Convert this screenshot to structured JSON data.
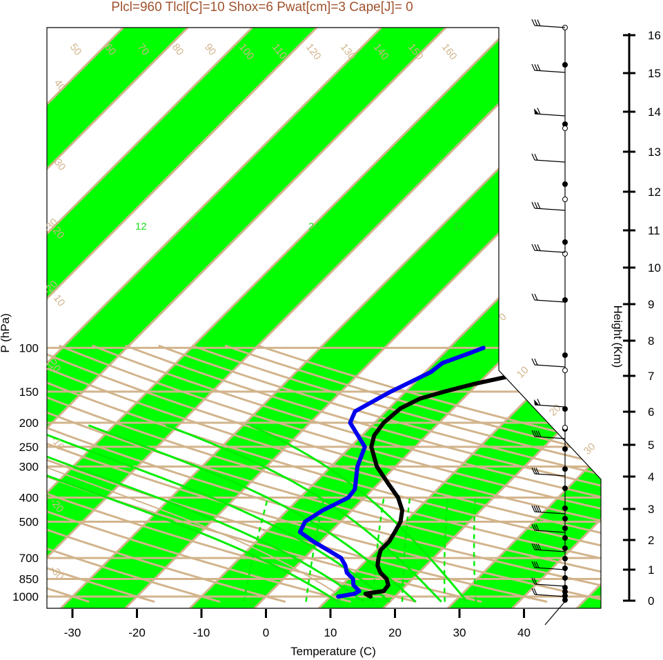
{
  "chart_data": {
    "type": "skew-t",
    "title": "Plcl=960 Tlcl[C]=10 Shox=6 Pwat[cm]=3 Cape[J]= 0",
    "xlabel": "Temperature (C)",
    "ylabel": "P (hPa)",
    "ylabel_right": "Height (Km)",
    "xlim": [
      -33,
      53
    ],
    "pressure_range_hPa": [
      1050,
      100
    ],
    "x_ticks": [
      "-30",
      "-20",
      "-10",
      "0",
      "10",
      "20",
      "30",
      "40"
    ],
    "p_ticks": [
      "100",
      "150",
      "200",
      "250",
      "300",
      "400",
      "500",
      "700",
      "850",
      "1000"
    ],
    "height_ticks": [
      "0",
      "1",
      "2",
      "3",
      "4",
      "5",
      "6",
      "7",
      "8",
      "9",
      "10",
      "11",
      "12",
      "13",
      "14",
      "15",
      "16"
    ],
    "isotherm_labels": [
      "-30",
      "-20",
      "-10",
      "0",
      "10",
      "20",
      "30"
    ],
    "dry_adiabat_labels": [
      "-30",
      "-20",
      "-10",
      "0",
      "10",
      "20",
      "30",
      "40",
      "50",
      "60",
      "70",
      "80",
      "90",
      "100",
      "110",
      "120",
      "130",
      "140",
      "150",
      "160"
    ],
    "mixing_ratio_labels": [
      "3",
      "6",
      "12",
      "16",
      "24",
      "32"
    ],
    "temperature_profile": [
      {
        "p": 1000,
        "t": 16.2
      },
      {
        "p": 975,
        "t": 15.0
      },
      {
        "p": 950,
        "t": 17.4
      },
      {
        "p": 900,
        "t": 17.2
      },
      {
        "p": 850,
        "t": 16.0
      },
      {
        "p": 800,
        "t": 14.0
      },
      {
        "p": 750,
        "t": 12.5
      },
      {
        "p": 700,
        "t": 11.5
      },
      {
        "p": 650,
        "t": 10.6
      },
      {
        "p": 600,
        "t": 10.6
      },
      {
        "p": 550,
        "t": 10.0
      },
      {
        "p": 500,
        "t": 9.3
      },
      {
        "p": 450,
        "t": 7.8
      },
      {
        "p": 400,
        "t": 5.2
      },
      {
        "p": 350,
        "t": 1.4
      },
      {
        "p": 300,
        "t": -2.9
      },
      {
        "p": 250,
        "t": -6.8
      },
      {
        "p": 225,
        "t": -8.1
      },
      {
        "p": 200,
        "t": -8.6
      },
      {
        "p": 175,
        "t": -8.2
      },
      {
        "p": 160,
        "t": -6.7
      },
      {
        "p": 150,
        "t": -4.0
      },
      {
        "p": 140,
        "t": -0.7
      },
      {
        "p": 125,
        "t": 6.1
      },
      {
        "p": 110,
        "t": 15.5
      },
      {
        "p": 100,
        "t": 20.6
      }
    ],
    "dewpoint_profile": [
      {
        "p": 1000,
        "t": 11.2
      },
      {
        "p": 975,
        "t": 13.3
      },
      {
        "p": 950,
        "t": 13.6
      },
      {
        "p": 900,
        "t": 11.8
      },
      {
        "p": 850,
        "t": 10.8
      },
      {
        "p": 800,
        "t": 8.8
      },
      {
        "p": 750,
        "t": 7.5
      },
      {
        "p": 700,
        "t": 5.7
      },
      {
        "p": 600,
        "t": -1.2
      },
      {
        "p": 550,
        "t": -4.7
      },
      {
        "p": 500,
        "t": -5.5
      },
      {
        "p": 450,
        "t": -4.5
      },
      {
        "p": 400,
        "t": -2.5
      },
      {
        "p": 370,
        "t": -2.8
      },
      {
        "p": 300,
        "t": -5.9
      },
      {
        "p": 250,
        "t": -7.8
      },
      {
        "p": 200,
        "t": -13.8
      },
      {
        "p": 180,
        "t": -14.8
      },
      {
        "p": 160,
        "t": -13.2
      },
      {
        "p": 150,
        "t": -12.3
      },
      {
        "p": 125,
        "t": -9.1
      },
      {
        "p": 115,
        "t": -8.7
      },
      {
        "p": 105,
        "t": -6.0
      },
      {
        "p": 100,
        "t": -4.7
      }
    ],
    "colors": {
      "temperature": "#000000",
      "dewpoint": "#0000ee",
      "isotherm_band": "#00ff00",
      "isotherm_line": "#d2b48c",
      "dry_adiabat": "#d2b48c",
      "moist_adiabat": "#00ee00",
      "mixing_ratio": "#00ee00",
      "title": "#a0522d"
    },
    "wind_barbs": [
      {
        "label": "100"
      },
      {
        "label": "115"
      },
      {
        "label": "125"
      },
      {
        "label": "150"
      },
      {
        "label": "175"
      },
      {
        "label": "200"
      },
      {
        "label": "250"
      },
      {
        "label": "300"
      },
      {
        "label": "400"
      },
      {
        "label": "500"
      },
      {
        "label": "700"
      },
      {
        "label": "850"
      }
    ]
  }
}
